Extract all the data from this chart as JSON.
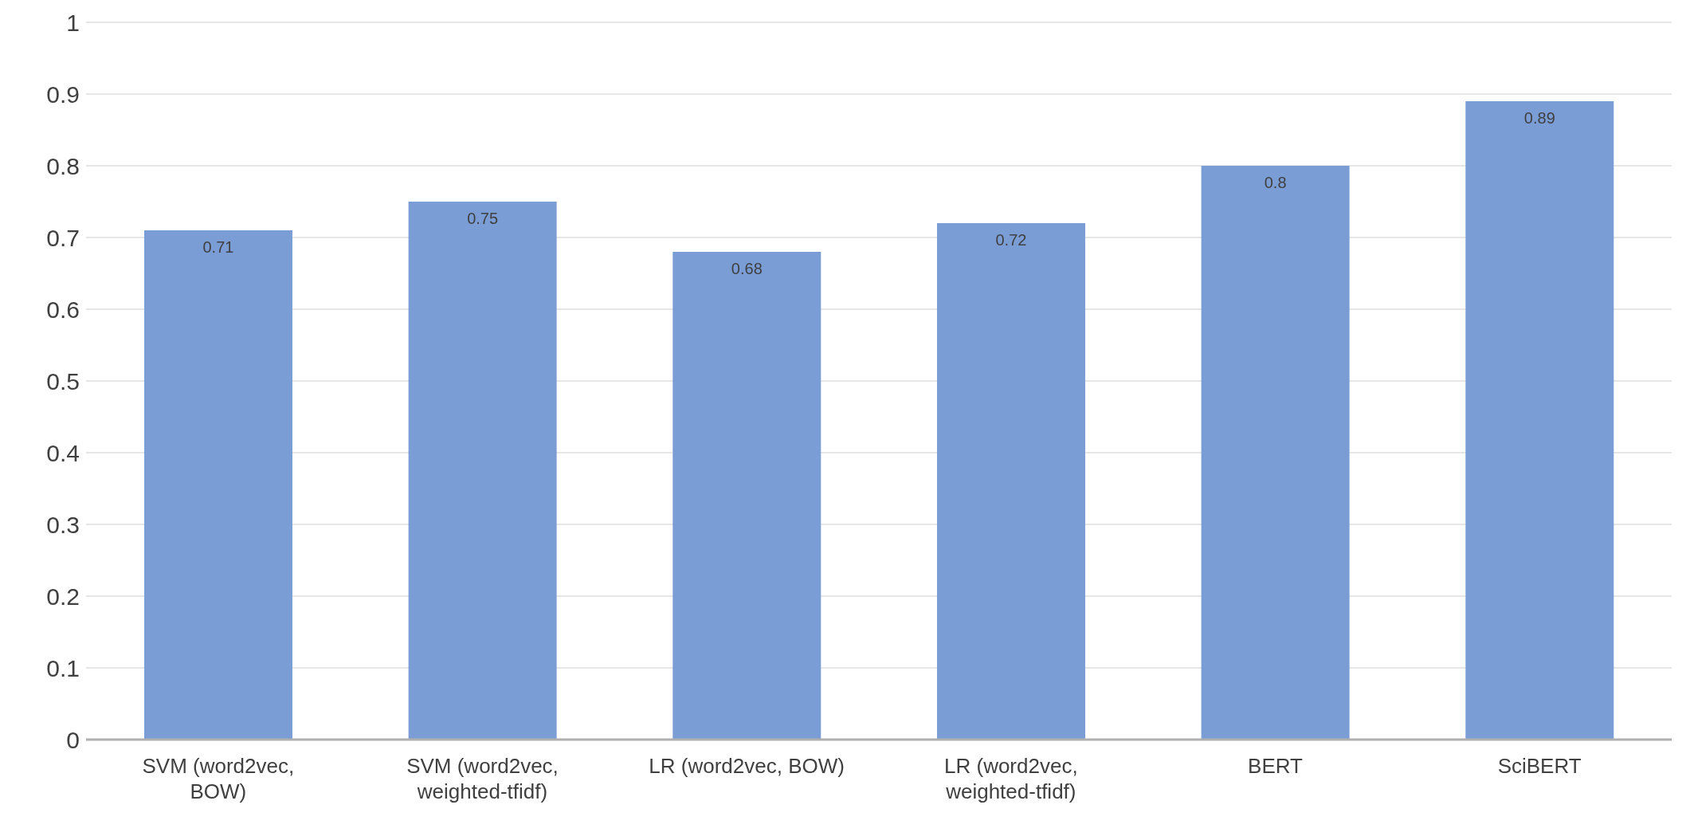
{
  "chart_data": {
    "type": "bar",
    "categories": [
      "SVM (word2vec, BOW)",
      "SVM (word2vec, weighted-tfidf)",
      "LR (word2vec, BOW)",
      "LR (word2vec, weighted-tfidf)",
      "BERT",
      "SciBERT"
    ],
    "values": [
      0.71,
      0.75,
      0.68,
      0.72,
      0.8,
      0.89
    ],
    "color": "#7a9dd6",
    "ylim": [
      0,
      1
    ],
    "yticks": [
      0,
      0.1,
      0.2,
      0.3,
      0.4,
      0.5,
      0.6,
      0.7,
      0.8,
      0.9,
      1
    ],
    "grid": "y",
    "data_labels": true
  }
}
